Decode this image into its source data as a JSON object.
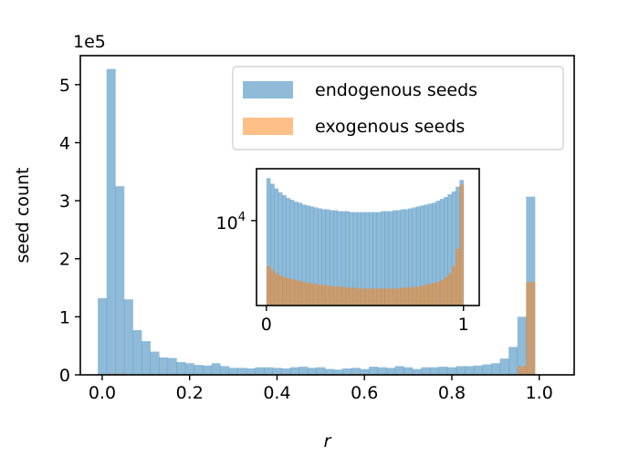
{
  "chart_data": [
    {
      "type": "histogram",
      "title": "",
      "xlabel": "r",
      "ylabel": "seed count",
      "y_scale_label": "1e5",
      "xlim": [
        -0.05,
        1.08
      ],
      "ylim": [
        0,
        5.5
      ],
      "x_ticks": [
        0.0,
        0.2,
        0.4,
        0.6,
        0.8,
        1.0
      ],
      "x_tick_labels": [
        "0.0",
        "0.2",
        "0.4",
        "0.6",
        "0.8",
        "1.0"
      ],
      "y_ticks": [
        0,
        1,
        2,
        3,
        4,
        5
      ],
      "y_tick_labels": [
        "0",
        "1",
        "2",
        "3",
        "4",
        "5"
      ],
      "bin_start": -0.01,
      "bin_width": 0.02,
      "legend": {
        "placement": "top-right",
        "entries": [
          "endogenous seeds",
          "exogenous seeds"
        ]
      },
      "series": [
        {
          "name": "endogenous seeds",
          "color": "#1f77b4",
          "alpha": 0.5,
          "values": [
            1.32,
            5.27,
            3.25,
            1.3,
            0.77,
            0.58,
            0.4,
            0.3,
            0.29,
            0.22,
            0.2,
            0.17,
            0.16,
            0.2,
            0.15,
            0.12,
            0.12,
            0.11,
            0.13,
            0.13,
            0.12,
            0.11,
            0.13,
            0.14,
            0.12,
            0.13,
            0.1,
            0.09,
            0.11,
            0.12,
            0.1,
            0.14,
            0.13,
            0.12,
            0.15,
            0.13,
            0.1,
            0.13,
            0.13,
            0.14,
            0.13,
            0.15,
            0.15,
            0.16,
            0.18,
            0.2,
            0.28,
            0.48,
            1.0,
            3.07
          ]
        },
        {
          "name": "exogenous seeds",
          "color": "#ff7f0e",
          "alpha": 0.5,
          "values": [
            0.01,
            0.02,
            0.02,
            0.01,
            0.01,
            0.01,
            0.01,
            0.01,
            0.01,
            0.01,
            0.01,
            0.01,
            0.01,
            0.01,
            0.01,
            0.01,
            0.01,
            0.01,
            0.01,
            0.01,
            0.01,
            0.01,
            0.01,
            0.01,
            0.01,
            0.01,
            0.01,
            0.01,
            0.01,
            0.01,
            0.01,
            0.01,
            0.01,
            0.01,
            0.01,
            0.01,
            0.01,
            0.01,
            0.01,
            0.01,
            0.01,
            0.01,
            0.01,
            0.01,
            0.01,
            0.01,
            0.01,
            0.01,
            0.15,
            1.6
          ]
        }
      ]
    },
    {
      "type": "histogram",
      "title": "",
      "inset": true,
      "yscale": "log",
      "xlim": [
        -0.05,
        1.08
      ],
      "ylim_log10": [
        3.1,
        4.55
      ],
      "x_ticks": [
        0,
        1
      ],
      "x_tick_labels": [
        "0",
        "1"
      ],
      "y_ticks": [
        4
      ],
      "y_tick_labels": [
        "10",
        "4"
      ],
      "bin_start": 0.0,
      "bin_width": 0.02,
      "series": [
        {
          "name": "endogenous seeds",
          "color": "#1f77b4",
          "alpha": 0.5,
          "log10_values": [
            4.45,
            4.39,
            4.34,
            4.3,
            4.27,
            4.24,
            4.22,
            4.2,
            4.19,
            4.17,
            4.16,
            4.15,
            4.14,
            4.13,
            4.12,
            4.12,
            4.11,
            4.11,
            4.1,
            4.1,
            4.1,
            4.09,
            4.09,
            4.09,
            4.09,
            4.09,
            4.09,
            4.09,
            4.09,
            4.1,
            4.1,
            4.1,
            4.11,
            4.11,
            4.12,
            4.12,
            4.13,
            4.14,
            4.15,
            4.16,
            4.17,
            4.18,
            4.19,
            4.21,
            4.23,
            4.25,
            4.28,
            4.31,
            4.36,
            4.43
          ]
        },
        {
          "name": "exogenous seeds",
          "color": "#ff7f0e",
          "alpha": 0.5,
          "log10_values": [
            3.52,
            3.48,
            3.44,
            3.42,
            3.4,
            3.39,
            3.38,
            3.37,
            3.36,
            3.35,
            3.34,
            3.33,
            3.33,
            3.32,
            3.32,
            3.31,
            3.31,
            3.3,
            3.3,
            3.3,
            3.29,
            3.29,
            3.29,
            3.28,
            3.28,
            3.28,
            3.28,
            3.28,
            3.28,
            3.28,
            3.28,
            3.28,
            3.28,
            3.28,
            3.29,
            3.29,
            3.29,
            3.3,
            3.3,
            3.31,
            3.32,
            3.33,
            3.34,
            3.35,
            3.37,
            3.4,
            3.44,
            3.52,
            3.7,
            4.38
          ]
        }
      ]
    }
  ]
}
